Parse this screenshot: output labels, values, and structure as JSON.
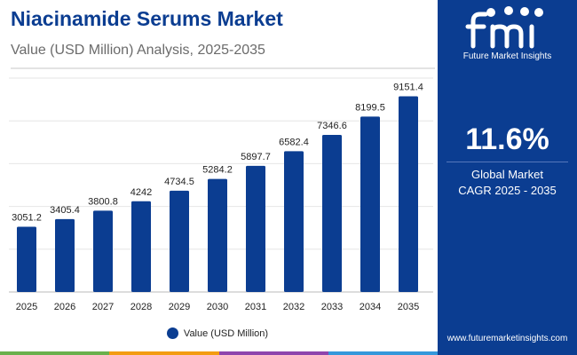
{
  "header": {
    "title": "Niacinamide Serums Market",
    "subtitle": "Value (USD Million) Analysis, 2025-2035"
  },
  "sidebar": {
    "logo_text": "Future Market Insights",
    "logo_icon": "fmi-logo-icon",
    "cagr_value": "11.6%",
    "cagr_label_line1": "Global Market",
    "cagr_label_line2": "CAGR 2025 - 2035",
    "website": "www.futuremarketinsights.com"
  },
  "colors": {
    "bar": "#0b3d91",
    "sidebar": "#0b3d91",
    "stripe": [
      "#6ab04c",
      "#f39c12",
      "#8e44ad",
      "#3498db"
    ]
  },
  "chart_data": {
    "type": "bar",
    "title": "Niacinamide Serums Market",
    "subtitle": "Value (USD Million) Analysis, 2025-2035",
    "categories": [
      "2025",
      "2026",
      "2027",
      "2028",
      "2029",
      "2030",
      "2031",
      "2032",
      "2033",
      "2034",
      "2035"
    ],
    "series": [
      {
        "name": "Value (USD Million)",
        "values": [
          3051.2,
          3405.4,
          3800.8,
          4242,
          4734.5,
          5284.2,
          5897.7,
          6582.4,
          7346.6,
          8199.5,
          9151.4
        ],
        "labels": [
          "3051.2",
          "3405.4",
          "3800.8",
          "4242",
          "4734.5",
          "5284.2",
          "5897.7",
          "6582.4",
          "7346.6",
          "8199.5",
          "9151.4"
        ]
      }
    ],
    "ylim": [
      0,
      10000
    ],
    "grid": true,
    "legend": "bottom-center"
  }
}
